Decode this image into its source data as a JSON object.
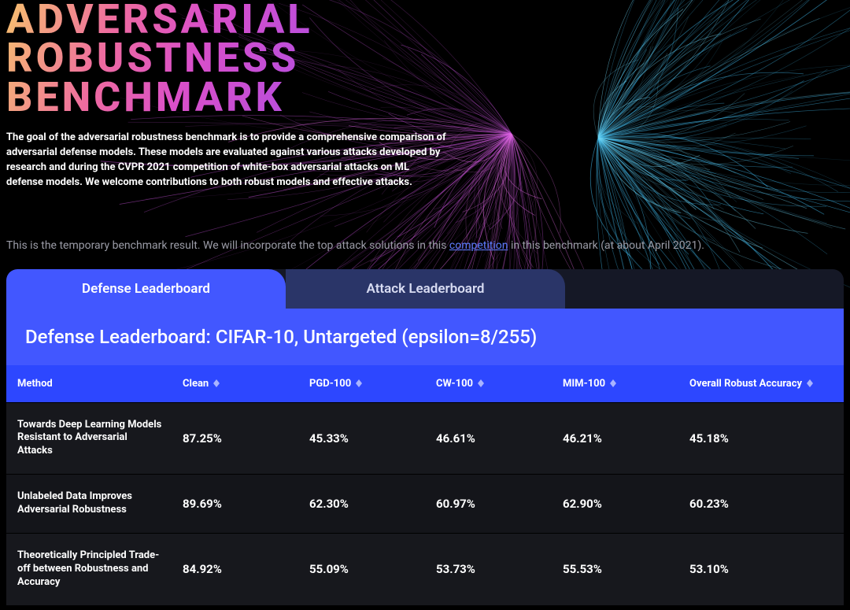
{
  "hero": {
    "title_line1": "ADVERSARIAL",
    "title_line2": "ROBUSTNESS",
    "title_line3": "BENCHMARK",
    "description": "The goal of the adversarial robustness benchmark is to provide a comprehensive comparison of adversarial defense models. These models are evaluated against various attacks developed by research and during the CVPR 2021 competition of white-box adversarial attacks on ML defense models. We welcome contributions to both robust models and effective attacks."
  },
  "note": {
    "pre": "This is the temporary benchmark result. We will incorporate the top attack solutions in this ",
    "link_text": "competition",
    "post": "  in this benchmark (at about April 2021)."
  },
  "tabs": {
    "defense": "Defense Leaderboard",
    "attack": "Attack Leaderboard"
  },
  "panel": {
    "title": "Defense Leaderboard: CIFAR-10, Untargeted (epsilon=8/255)"
  },
  "table": {
    "columns": {
      "method": "Method",
      "clean": "Clean",
      "pgd": "PGD-100",
      "cw": "CW-100",
      "mim": "MIM-100",
      "overall": "Overall Robust Accuracy"
    },
    "rows": [
      {
        "method": "Towards Deep Learning Models Resistant to Adversarial Attacks",
        "clean": "87.25%",
        "pgd": "45.33%",
        "cw": "46.61%",
        "mim": "46.21%",
        "overall": "45.18%"
      },
      {
        "method": "Unlabeled Data Improves Adversarial Robustness",
        "clean": "89.69%",
        "pgd": "62.30%",
        "cw": "60.97%",
        "mim": "62.90%",
        "overall": "60.23%"
      },
      {
        "method": "Theoretically Principled Trade-off between Robustness and Accuracy",
        "clean": "84.92%",
        "pgd": "55.09%",
        "cw": "53.73%",
        "mim": "55.53%",
        "overall": "53.10%"
      }
    ]
  },
  "colors": {
    "bg": "#000000",
    "title_gradient_start": "#f7c66b",
    "title_gradient_mid1": "#ee6aa0",
    "title_gradient_mid2": "#d94fc9",
    "title_gradient_end": "#b24de0",
    "note_text": "#9b9ca7",
    "link": "#5d7cff",
    "tab_active_bg": "#4257ff",
    "tab_inactive_bg": "#2a3568",
    "tab_track_bg": "#151826",
    "thead_bg": "#2d47ff",
    "row_bg": "#17181d",
    "row_alt_bg": "#14151a",
    "art_left": "#c24fd6",
    "art_right": "#3fb6e8"
  }
}
